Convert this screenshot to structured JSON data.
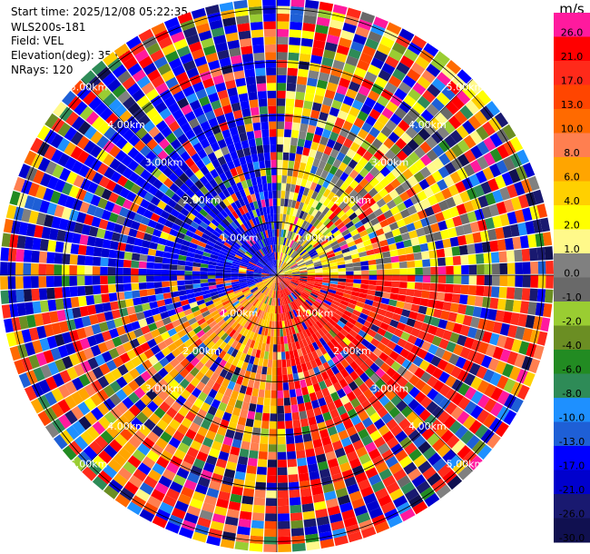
{
  "header": {
    "start_time": "Start time: 2025/12/08 05:22:35",
    "instrument": "WLS200s-181",
    "field": "Field: VEL",
    "elevation": "Elevation(deg): 35.00",
    "nrays": "NRays: 120"
  },
  "chart_data": {
    "type": "heatmap",
    "projection": "polar-ppi",
    "field": "VEL",
    "elevation_deg": 35.0,
    "nrays": 120,
    "range_rings_km": [
      1.0,
      2.0,
      3.0,
      4.0,
      5.0
    ],
    "ring_label_text": [
      "1.00km",
      "2.00km",
      "3.00km",
      "4.00km",
      "5.00km"
    ],
    "max_range_km": 5.2,
    "colorbar": {
      "unit": "m/s",
      "ticks": [
        "26.0",
        "21.0",
        "17.0",
        "13.0",
        "10.0",
        "8.0",
        "6.0",
        "4.0",
        "2.0",
        "1.0",
        "0.0",
        "-1.0",
        "-2.0",
        "-4.0",
        "-6.0",
        "-8.0",
        "-10.0",
        "-13.0",
        "-17.0",
        "-21.0",
        "-26.0",
        "-30.0"
      ],
      "colors": [
        "#ff1a9e",
        "#ff0000",
        "#ff2a1a",
        "#ff4500",
        "#ff6a00",
        "#ff7f50",
        "#ffa500",
        "#ffd000",
        "#ffff00",
        "#fff98a",
        "#808080",
        "#696969",
        "#9acd32",
        "#6b8e23",
        "#228b22",
        "#2e8b57",
        "#1e90ff",
        "#1e5fd6",
        "#0000ff",
        "#0000cd",
        "#191970",
        "#101050"
      ]
    },
    "sectors": [
      {
        "az_from": 0,
        "az_to": 90,
        "mean_vel": 1.0,
        "note": "yellow / orange near center"
      },
      {
        "az_from": 90,
        "az_to": 180,
        "mean_vel": 18.0,
        "note": "pink / red outer sector"
      },
      {
        "az_from": 180,
        "az_to": 250,
        "mean_vel": 6.0,
        "note": "orange / yellow sector"
      },
      {
        "az_from": 250,
        "az_to": 360,
        "mean_vel": -18.0,
        "note": "blue / dark blue sector"
      }
    ]
  }
}
